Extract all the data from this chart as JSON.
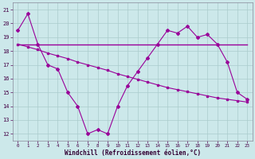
{
  "x": [
    0,
    1,
    2,
    3,
    4,
    5,
    6,
    7,
    8,
    9,
    10,
    11,
    12,
    13,
    14,
    15,
    16,
    17,
    18,
    19,
    20,
    21,
    22,
    23
  ],
  "y_main": [
    19.5,
    20.7,
    18.5,
    17.0,
    16.7,
    15.0,
    14.0,
    12.0,
    12.3,
    12.0,
    14.0,
    15.5,
    16.5,
    17.5,
    18.5,
    19.5,
    19.3,
    19.8,
    19.0,
    19.2,
    18.5,
    17.2,
    15.0,
    14.5
  ],
  "y_trend1": [
    18.5,
    18.5,
    18.5,
    18.5,
    18.5,
    18.5,
    18.5,
    18.5,
    18.5,
    18.5,
    18.5,
    18.5,
    18.5,
    18.5,
    18.5,
    18.5,
    18.5,
    18.5,
    18.5,
    18.5,
    18.5,
    18.5,
    18.5,
    18.5
  ],
  "y_trend2": [
    18.5,
    18.3,
    18.1,
    17.85,
    17.65,
    17.45,
    17.2,
    17.0,
    16.8,
    16.6,
    16.35,
    16.15,
    15.95,
    15.75,
    15.55,
    15.35,
    15.2,
    15.05,
    14.9,
    14.75,
    14.6,
    14.5,
    14.4,
    14.3
  ],
  "line_color": "#990099",
  "bg_color": "#cce8ea",
  "grid_color": "#aacccc",
  "xlabel": "Windchill (Refroidissement éolien,°C)",
  "ylim": [
    11.5,
    21.5
  ],
  "xlim": [
    -0.5,
    23.5
  ],
  "yticks": [
    12,
    13,
    14,
    15,
    16,
    17,
    18,
    19,
    20,
    21
  ],
  "xticks": [
    0,
    1,
    2,
    3,
    4,
    5,
    6,
    7,
    8,
    9,
    10,
    11,
    12,
    13,
    14,
    15,
    16,
    17,
    18,
    19,
    20,
    21,
    22,
    23
  ]
}
